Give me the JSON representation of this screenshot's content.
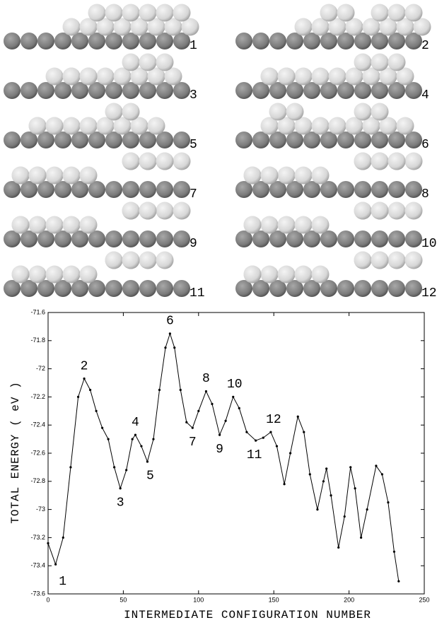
{
  "panels": {
    "labels": [
      "1",
      "2",
      "3",
      "4",
      "5",
      "6",
      "7",
      "8",
      "9",
      "10",
      "11",
      "12"
    ]
  },
  "chart_data": {
    "type": "line",
    "xlabel": "INTERMEDIATE CONFIGURATION NUMBER",
    "ylabel": "TOTAL ENERGY ( eV )",
    "x": [
      0,
      5,
      10,
      15,
      20,
      24,
      28,
      32,
      36,
      40,
      44,
      48,
      52,
      56,
      58,
      62,
      66,
      70,
      74,
      78,
      81,
      84,
      88,
      92,
      96,
      100,
      105,
      109,
      114,
      118,
      123,
      127,
      132,
      138,
      143,
      148,
      152,
      157,
      161,
      166,
      170,
      174,
      179,
      183,
      185,
      188,
      193,
      197,
      201,
      204,
      208,
      212,
      218,
      222,
      226,
      230,
      233
    ],
    "values": [
      -73.24,
      -73.39,
      -73.2,
      -72.7,
      -72.2,
      -72.07,
      -72.15,
      -72.3,
      -72.42,
      -72.5,
      -72.7,
      -72.85,
      -72.72,
      -72.5,
      -72.47,
      -72.55,
      -72.66,
      -72.5,
      -72.15,
      -71.85,
      -71.75,
      -71.85,
      -72.15,
      -72.38,
      -72.42,
      -72.3,
      -72.16,
      -72.25,
      -72.47,
      -72.37,
      -72.2,
      -72.28,
      -72.45,
      -72.51,
      -72.49,
      -72.45,
      -72.55,
      -72.82,
      -72.6,
      -72.34,
      -72.45,
      -72.75,
      -73.0,
      -72.8,
      -72.71,
      -72.9,
      -73.27,
      -73.05,
      -72.7,
      -72.85,
      -73.2,
      -73.0,
      -72.69,
      -72.75,
      -72.95,
      -73.3,
      -73.51
    ],
    "color": "#000000",
    "annotations": [
      "1",
      "2",
      "3",
      "4",
      "5",
      "6",
      "7",
      "8",
      "9",
      "10",
      "11",
      "12"
    ],
    "xlim": [
      0,
      250
    ],
    "xticks": [
      0,
      50,
      100,
      150,
      200,
      250
    ],
    "ylim": [
      -73.6,
      -71.6
    ],
    "yticks": [
      -73.6,
      -73.4,
      -73.2,
      -73,
      -72.8,
      -72.6,
      -72.4,
      -72.2,
      -72,
      -71.8,
      -71.6
    ]
  }
}
